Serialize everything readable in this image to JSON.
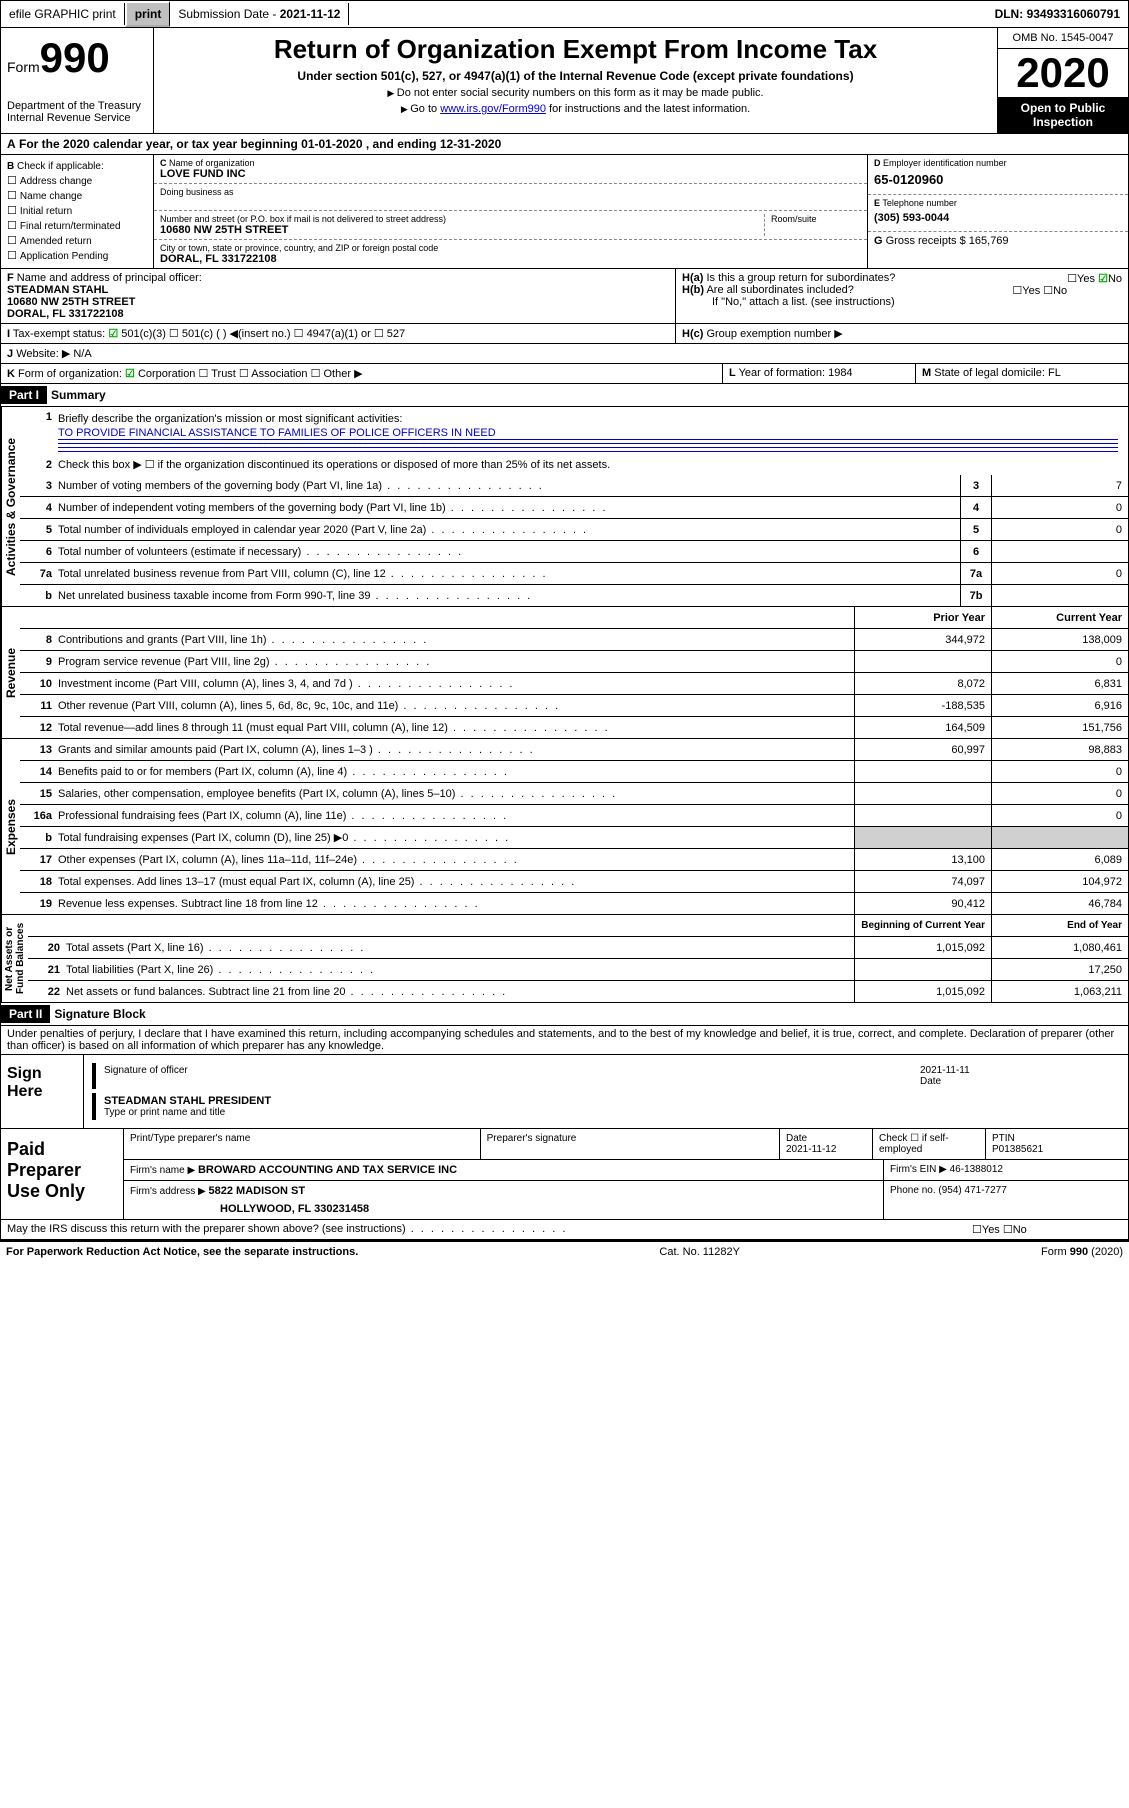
{
  "top": {
    "efile": "efile GRAPHIC print",
    "subdate_label": "Submission Date - ",
    "subdate": "2021-11-12",
    "dln_label": "DLN: ",
    "dln": "93493316060791"
  },
  "header": {
    "form": "Form",
    "num": "990",
    "dept": "Department of the Treasury\nInternal Revenue Service",
    "title": "Return of Organization Exempt From Income Tax",
    "subtitle": "Under section 501(c), 527, or 4947(a)(1) of the Internal Revenue Code (except private foundations)",
    "notice1": "Do not enter social security numbers on this form as it may be made public.",
    "notice2_pre": "Go to ",
    "notice2_link": "www.irs.gov/Form990",
    "notice2_post": " for instructions and the latest information.",
    "omb": "OMB No. 1545-0047",
    "year": "2020",
    "open": "Open to Public Inspection"
  },
  "A": {
    "pre": "For the 2020 calendar year, or tax year beginning ",
    "begin": "01-01-2020",
    "mid": " , and ending ",
    "end": "12-31-2020"
  },
  "B": {
    "label": "Check if applicable:",
    "opts": [
      "Address change",
      "Name change",
      "Initial return",
      "Final return/terminated",
      "Amended return",
      "Application Pending"
    ]
  },
  "C": {
    "name_label": "Name of organization",
    "name": "LOVE FUND INC",
    "dba_label": "Doing business as",
    "street_label": "Number and street (or P.O. box if mail is not delivered to street address)",
    "room_label": "Room/suite",
    "street": "10680 NW 25TH STREET",
    "city_label": "City or town, state or province, country, and ZIP or foreign postal code",
    "city": "DORAL, FL  331722108"
  },
  "D": {
    "label": "Employer identification number",
    "val": "65-0120960"
  },
  "E": {
    "label": "Telephone number",
    "val": "(305) 593-0044"
  },
  "G": {
    "label": "Gross receipts $",
    "val": "165,769"
  },
  "F": {
    "label": "Name and address of principal officer:",
    "name": "STEADMAN STAHL",
    "addr1": "10680 NW 25TH STREET",
    "addr2": "DORAL, FL  331722108"
  },
  "H": {
    "a": "Is this a group return for subordinates?",
    "a_ans": "No",
    "b": "Are all subordinates included?",
    "b_note": "If \"No,\" attach a list. (see instructions)",
    "c": "Group exemption number ▶"
  },
  "I": {
    "label": "Tax-exempt status:",
    "c3": "501(c)(3)",
    "c": "501(c) (  ) ◀(insert no.)",
    "a1": "4947(a)(1) or",
    "s527": "527"
  },
  "J": {
    "label": "Website: ▶",
    "val": "N/A"
  },
  "K": {
    "label": "Form of organization:",
    "corp": "Corporation",
    "trust": "Trust",
    "assoc": "Association",
    "other": "Other ▶"
  },
  "L": {
    "label": "Year of formation:",
    "val": "1984"
  },
  "M": {
    "label": "State of legal domicile:",
    "val": "FL"
  },
  "part1": {
    "tag": "Part I",
    "title": "Summary"
  },
  "summ": {
    "l1": "Briefly describe the organization's mission or most significant activities:",
    "l1v": "TO PROVIDE FINANCIAL ASSISTANCE TO FAMILIES OF POLICE OFFICERS IN NEED",
    "l2": "Check this box ▶ ☐ if the organization discontinued its operations or disposed of more than 25% of its net assets.",
    "l3": "Number of voting members of the governing body (Part VI, line 1a)",
    "l3v": "7",
    "l4": "Number of independent voting members of the governing body (Part VI, line 1b)",
    "l4v": "0",
    "l5": "Total number of individuals employed in calendar year 2020 (Part V, line 2a)",
    "l5v": "0",
    "l6": "Total number of volunteers (estimate if necessary)",
    "l6v": "",
    "l7a": "Total unrelated business revenue from Part VIII, column (C), line 12",
    "l7av": "0",
    "l7b": "Net unrelated business taxable income from Form 990-T, line 39",
    "l7bv": ""
  },
  "cols": {
    "prior": "Prior Year",
    "current": "Current Year"
  },
  "rev": [
    {
      "n": "8",
      "t": "Contributions and grants (Part VIII, line 1h)",
      "p": "344,972",
      "c": "138,009"
    },
    {
      "n": "9",
      "t": "Program service revenue (Part VIII, line 2g)",
      "p": "",
      "c": "0"
    },
    {
      "n": "10",
      "t": "Investment income (Part VIII, column (A), lines 3, 4, and 7d )",
      "p": "8,072",
      "c": "6,831"
    },
    {
      "n": "11",
      "t": "Other revenue (Part VIII, column (A), lines 5, 6d, 8c, 9c, 10c, and 11e)",
      "p": "-188,535",
      "c": "6,916"
    },
    {
      "n": "12",
      "t": "Total revenue—add lines 8 through 11 (must equal Part VIII, column (A), line 12)",
      "p": "164,509",
      "c": "151,756"
    }
  ],
  "exp": [
    {
      "n": "13",
      "t": "Grants and similar amounts paid (Part IX, column (A), lines 1–3 )",
      "p": "60,997",
      "c": "98,883"
    },
    {
      "n": "14",
      "t": "Benefits paid to or for members (Part IX, column (A), line 4)",
      "p": "",
      "c": "0"
    },
    {
      "n": "15",
      "t": "Salaries, other compensation, employee benefits (Part IX, column (A), lines 5–10)",
      "p": "",
      "c": "0"
    },
    {
      "n": "16a",
      "t": "Professional fundraising fees (Part IX, column (A), line 11e)",
      "p": "",
      "c": "0"
    },
    {
      "n": "b",
      "t": "Total fundraising expenses (Part IX, column (D), line 25) ▶0",
      "p": "",
      "c": "",
      "grey": true
    },
    {
      "n": "17",
      "t": "Other expenses (Part IX, column (A), lines 11a–11d, 11f–24e)",
      "p": "13,100",
      "c": "6,089"
    },
    {
      "n": "18",
      "t": "Total expenses. Add lines 13–17 (must equal Part IX, column (A), line 25)",
      "p": "74,097",
      "c": "104,972"
    },
    {
      "n": "19",
      "t": "Revenue less expenses. Subtract line 18 from line 12",
      "p": "90,412",
      "c": "46,784"
    }
  ],
  "cols2": {
    "begin": "Beginning of Current Year",
    "end": "End of Year"
  },
  "net": [
    {
      "n": "20",
      "t": "Total assets (Part X, line 16)",
      "p": "1,015,092",
      "c": "1,080,461"
    },
    {
      "n": "21",
      "t": "Total liabilities (Part X, line 26)",
      "p": "",
      "c": "17,250"
    },
    {
      "n": "22",
      "t": "Net assets or fund balances. Subtract line 21 from line 20",
      "p": "1,015,092",
      "c": "1,063,211"
    }
  ],
  "part2": {
    "tag": "Part II",
    "title": "Signature Block"
  },
  "penalty": "Under penalties of perjury, I declare that I have examined this return, including accompanying schedules and statements, and to the best of my knowledge and belief, it is true, correct, and complete. Declaration of preparer (other than officer) is based on all information of which preparer has any knowledge.",
  "sign": {
    "here": "Sign Here",
    "sig": "Signature of officer",
    "date_lbl": "Date",
    "date": "2021-11-11",
    "name": "STEADMAN STAHL PRESIDENT",
    "type": "Type or print name and title"
  },
  "prep": {
    "label": "Paid Preparer Use Only",
    "r1": {
      "a": "Print/Type preparer's name",
      "b": "Preparer's signature",
      "c": "Date",
      "cv": "2021-11-12",
      "d": "Check ☐ if self-employed",
      "e": "PTIN",
      "ev": "P01385621"
    },
    "r2": {
      "a": "Firm's name    ▶",
      "av": "BROWARD ACCOUNTING AND TAX SERVICE INC",
      "b": "Firm's EIN ▶",
      "bv": "46-1388012"
    },
    "r3": {
      "a": "Firm's address ▶",
      "av": "5822 MADISON ST",
      "b": "Phone no.",
      "bv": "(954) 471-7277"
    },
    "r3b": "HOLLYWOOD, FL  330231458"
  },
  "discuss": "May the IRS discuss this return with the preparer shown above? (see instructions)",
  "foot": {
    "a": "For Paperwork Reduction Act Notice, see the separate instructions.",
    "b": "Cat. No. 11282Y",
    "c": "Form 990 (2020)"
  }
}
